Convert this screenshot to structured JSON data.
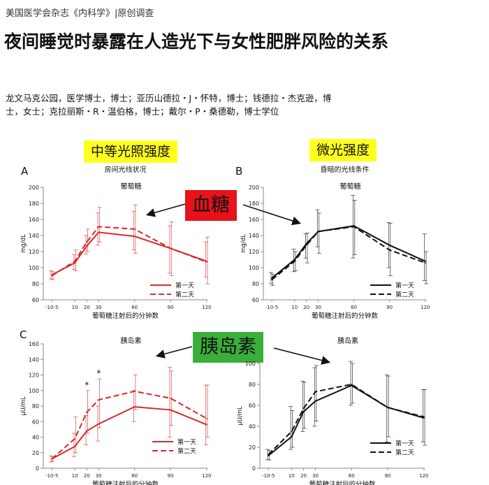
{
  "article": {
    "source": "美国医学会杂志《内科学》|原创调查",
    "headline": "夜间睡觉时暴露在人造光下与女性肥胖风险的关系",
    "authors_line1": "龙文马克公园，医学博士，博士；亚历山德拉・J・怀特，博士；钱德拉・杰克逊，博",
    "authors_line2": "士，女士；克拉丽斯・R・温伯格，博士；戴尔・P・桑德勒，博士学位"
  },
  "annotations": {
    "moderate": "中等光照强度",
    "dim": "微光强度",
    "glucose_callout": "血糖",
    "insulin_callout": "胰岛素"
  },
  "colors": {
    "red": "#d62a2a",
    "black": "#111111",
    "yellow": "#ffff1e",
    "callout_red": "#e8121b",
    "callout_green": "#3aae3a"
  },
  "chart_data": [
    {
      "panel": "A",
      "type": "line",
      "subtitle": "房间光线状况",
      "title": "葡萄糖",
      "ylabel": "mg/dL",
      "xlabel": "葡萄糖注射后的分钟数",
      "x_ticks": [
        "-10-5",
        "10",
        "20",
        "30",
        "60",
        "90",
        "120"
      ],
      "y_ticks": [
        60,
        80,
        100,
        120,
        140,
        160,
        180,
        200
      ],
      "ylim": [
        60,
        200
      ],
      "color": "#d62a2a",
      "series": [
        {
          "name": "第一天",
          "dash": false,
          "values": [
            91,
            106,
            127,
            144,
            139,
            124,
            108
          ],
          "err": [
            [
              86,
              96
            ],
            [
              98,
              116
            ],
            [
              117,
              140
            ],
            [
              128,
              168
            ],
            [
              122,
              170
            ],
            [
              93,
              152
            ],
            [
              88,
              132
            ]
          ]
        },
        {
          "name": "第二天",
          "dash": true,
          "values": [
            90,
            108,
            132,
            151,
            148,
            124,
            107
          ],
          "err": [
            [
              85,
              95
            ],
            [
              96,
              122
            ],
            [
              120,
              148
            ],
            [
              132,
              175
            ],
            [
              118,
              178
            ],
            [
              90,
              157
            ],
            [
              80,
              138
            ]
          ]
        }
      ],
      "stars": []
    },
    {
      "panel": "B",
      "type": "line",
      "subtitle": "昏暗的光线条件",
      "title": "葡萄糖",
      "ylabel": "mg/dL",
      "xlabel": "葡萄糖注射后的分钟数",
      "x_ticks": [
        "-10-5",
        "10",
        "20",
        "30",
        "60",
        "90",
        "120"
      ],
      "y_ticks": [
        60,
        80,
        100,
        120,
        140,
        160,
        180,
        200
      ],
      "ylim": [
        60,
        200
      ],
      "color": "#111111",
      "series": [
        {
          "name": "第一天",
          "dash": false,
          "values": [
            87,
            110,
            130,
            145,
            152,
            128,
            108
          ],
          "err": [
            [
              80,
              94
            ],
            [
              95,
              123
            ],
            [
              112,
              142
            ],
            [
              126,
              172
            ],
            [
              112,
              190
            ],
            [
              100,
              156
            ],
            [
              84,
              142
            ]
          ]
        },
        {
          "name": "第二天",
          "dash": true,
          "values": [
            85,
            108,
            128,
            145,
            151,
            122,
            106
          ],
          "err": [
            [
              78,
              92
            ],
            [
              96,
              120
            ],
            [
              106,
              143
            ],
            [
              118,
              168
            ],
            [
              116,
              184
            ],
            [
              90,
              155
            ],
            [
              80,
              120
            ]
          ]
        }
      ],
      "stars": []
    },
    {
      "panel": "C",
      "type": "line",
      "subtitle": "",
      "title": "胰岛素",
      "ylabel": "μU/mL",
      "xlabel": "葡萄糖注射后的分钟数",
      "x_ticks": [
        "-10-5",
        "10",
        "20",
        "30",
        "60",
        "90",
        "120"
      ],
      "y_ticks": [
        0,
        20,
        40,
        60,
        80,
        100,
        120,
        140,
        160
      ],
      "ylim": [
        0,
        160
      ],
      "color": "#d62a2a",
      "series": [
        {
          "name": "第一天",
          "dash": false,
          "values": [
            12,
            28,
            48,
            57,
            79,
            75,
            56
          ],
          "err": [
            [
              8,
              16
            ],
            [
              15,
              45
            ],
            [
              30,
              68
            ],
            [
              35,
              80
            ],
            [
              60,
              100
            ],
            [
              40,
              130
            ],
            [
              30,
              107
            ]
          ]
        },
        {
          "name": "第二天",
          "dash": true,
          "values": [
            12,
            38,
            72,
            88,
            99,
            90,
            64
          ],
          "err": [
            [
              9,
              15
            ],
            [
              20,
              66
            ],
            [
              45,
              100
            ],
            [
              52,
              115
            ],
            [
              75,
              120
            ],
            [
              55,
              125
            ],
            [
              40,
              107
            ]
          ]
        }
      ],
      "stars": [
        {
          "x": "20",
          "label": "*"
        },
        {
          "x": "30",
          "label": "*"
        }
      ]
    },
    {
      "panel": "",
      "type": "line",
      "subtitle": "",
      "title": "胰岛素",
      "ylabel": "μU/mL",
      "xlabel": "葡萄糖注射后的分钟数",
      "x_ticks": [
        "-10-5",
        "10",
        "20",
        "30",
        "60",
        "90",
        "120"
      ],
      "y_ticks": [
        0,
        20,
        40,
        60,
        80,
        100
      ],
      "ylim": [
        0,
        100
      ],
      "color": "#111111",
      "series": [
        {
          "name": "第一天",
          "dash": false,
          "values": [
            12,
            30,
            54,
            64,
            79,
            58,
            48
          ],
          "err": [
            [
              8,
              18
            ],
            [
              18,
              59
            ],
            [
              35,
              83
            ],
            [
              40,
              96
            ],
            [
              60,
              102
            ],
            [
              25,
              89
            ],
            [
              25,
              75
            ]
          ]
        },
        {
          "name": "第二天",
          "dash": true,
          "values": [
            13,
            35,
            57,
            73,
            80,
            58,
            49
          ],
          "err": [
            [
              8,
              17
            ],
            [
              20,
              55
            ],
            [
              38,
              82
            ],
            [
              45,
              98
            ],
            [
              62,
              100
            ],
            [
              30,
              88
            ],
            [
              22,
              75
            ]
          ]
        }
      ],
      "stars": []
    }
  ]
}
